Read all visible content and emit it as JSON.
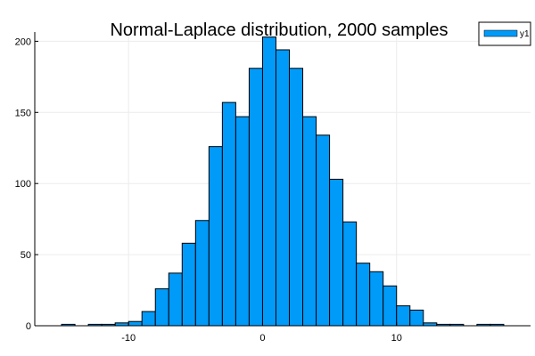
{
  "chart_data": {
    "type": "bar",
    "title": "Normal-Laplace distribution, 2000 samples",
    "xlabel": "",
    "ylabel": "",
    "bin_width": 1,
    "bin_starts": [
      -15,
      -14,
      -13,
      -12,
      -11,
      -10,
      -9,
      -8,
      -7,
      -6,
      -5,
      -4,
      -3,
      -2,
      -1,
      0,
      1,
      2,
      3,
      4,
      5,
      6,
      7,
      8,
      9,
      10,
      11,
      12,
      13,
      14,
      15,
      16,
      17
    ],
    "series": [
      {
        "name": "y1",
        "values": [
          1,
          0,
          1,
          1,
          2,
          3,
          10,
          26,
          37,
          58,
          74,
          126,
          157,
          147,
          181,
          203,
          194,
          181,
          147,
          134,
          103,
          73,
          44,
          38,
          28,
          14,
          11,
          2,
          1,
          1,
          0,
          1,
          1
        ]
      }
    ],
    "xlim": [
      -17,
      20
    ],
    "ylim": [
      0,
      204
    ],
    "xticks": [
      -10,
      0,
      10
    ],
    "yticks": [
      0,
      50,
      100,
      150,
      200
    ],
    "grid": true,
    "legend": "top-right",
    "colors": {
      "bar_fill": "#009af9",
      "bar_stroke": "#000000",
      "axis": "#000000",
      "grid": "#ececec"
    }
  }
}
